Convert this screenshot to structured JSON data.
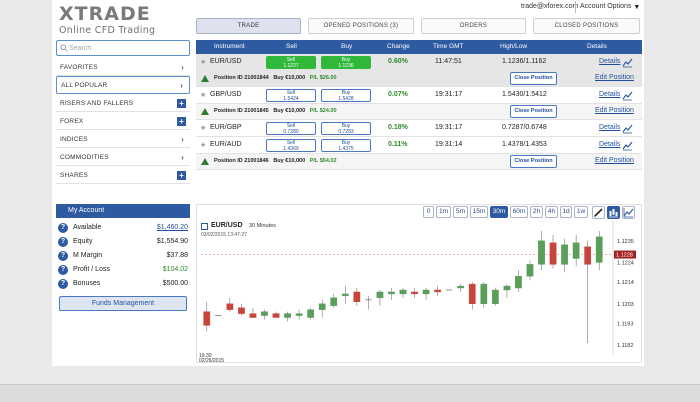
{
  "brand": {
    "logo": "XTRADE",
    "tagline": "Online CFD Trading"
  },
  "account_bar": {
    "email": "trade@xforex.com",
    "options_label": "Account Options"
  },
  "tabs": [
    {
      "label": "TRADE",
      "active": true
    },
    {
      "label": "OPENED POSITIONS (3)",
      "active": false
    },
    {
      "label": "ORDERS",
      "active": false
    },
    {
      "label": "CLOSED POSITIONS",
      "active": false
    }
  ],
  "search": {
    "placeholder": "Search"
  },
  "categories": [
    {
      "label": "FAVORITES",
      "icon": "chevron-right-icon"
    },
    {
      "label": "ALL POPULAR",
      "icon": "chevron-right-icon",
      "active": true
    },
    {
      "label": "RISERS AND FALLERS",
      "icon": "plus-icon"
    },
    {
      "label": "FOREX",
      "icon": "plus-icon"
    },
    {
      "label": "INDICES",
      "icon": "chevron-right-icon"
    },
    {
      "label": "COMMODITIES",
      "icon": "chevron-right-icon"
    },
    {
      "label": "SHARES",
      "icon": "plus-icon"
    }
  ],
  "my_account": {
    "title": "My Account",
    "rows": [
      {
        "label": "Available",
        "value": "$1,460.20"
      },
      {
        "label": "Equity",
        "value": "$1,554.90"
      },
      {
        "label": "M Margin",
        "value": "$37.88"
      },
      {
        "label": "Profit / Loss",
        "value": "$104.02"
      },
      {
        "label": "Bonuses",
        "value": "$500.00"
      }
    ],
    "funds_button": "Funds Management"
  },
  "table": {
    "headers": {
      "instrument": "Instrument",
      "sell": "Sell",
      "buy": "Buy",
      "change": "Change",
      "time": "Time GMT",
      "highlow": "High/Low",
      "details": "Details"
    },
    "rows": [
      {
        "instrument": "EUR/USD",
        "sell_label": "Sell",
        "sell": "1.1227",
        "buy_label": "Buy",
        "buy": "1.1236",
        "change": "0.60%",
        "time": "11:47:51",
        "highlow": "1.1236/1.1162",
        "details": "Details"
      },
      {
        "instrument": "GBP/USD",
        "sell_label": "Sell",
        "sell": "1.5424",
        "buy_label": "Buy",
        "buy": "1.5428",
        "change": "0.07%",
        "time": "19:31:17",
        "highlow": "1.5430/1.5412",
        "details": "Details"
      },
      {
        "instrument": "EUR/GBP",
        "sell_label": "Sell",
        "sell": "0.7280",
        "buy_label": "Buy",
        "buy": "0.7283",
        "change": "0.18%",
        "time": "19:31:17",
        "highlow": "0.7287/0.6748",
        "details": "Details"
      },
      {
        "instrument": "EUR/AUD",
        "sell_label": "Sell",
        "sell": "1.4369",
        "buy_label": "Buy",
        "buy": "1.4375",
        "change": "0.11%",
        "time": "19:31:14",
        "highlow": "1.4378/1.4353",
        "details": "Details"
      }
    ],
    "positions": [
      {
        "id": "Position ID 21001844",
        "buy": "Buy €10,000",
        "pl": "P/L $26.00",
        "close": "Close Position",
        "edit": "Edit Position"
      },
      {
        "id": "Position ID 21001845",
        "buy": "Buy €10,000",
        "pl": "P/L $24.00",
        "close": "Close Position",
        "edit": "Edit Position"
      },
      {
        "id": "Position ID 21001846",
        "buy": "Buy €10,000",
        "pl": "P/L $54.02",
        "close": "Close Position",
        "edit": "Edit Position"
      }
    ]
  },
  "chart": {
    "timeframes": [
      {
        "label": "0",
        "active": false
      },
      {
        "label": "1m",
        "active": false
      },
      {
        "label": "5m",
        "active": false
      },
      {
        "label": "15m",
        "active": false
      },
      {
        "label": "30m",
        "active": true
      },
      {
        "label": "60m",
        "active": false
      },
      {
        "label": "2h",
        "active": false
      },
      {
        "label": "4h",
        "active": false
      },
      {
        "label": "1d",
        "active": false
      },
      {
        "label": "1w",
        "active": false
      }
    ],
    "tools": [
      {
        "icon": "pencil-icon",
        "active": false
      },
      {
        "icon": "candlestick-chart-icon",
        "active": true
      },
      {
        "icon": "line-chart-icon",
        "active": false
      }
    ],
    "symbol": "EUR/USD",
    "timeframe_label": "30 Minutes",
    "datetime": "03/02/2015 13:47:27",
    "colors": {
      "up": "#5a9e5a",
      "down": "#c8453c",
      "marker": "#a32222"
    }
  },
  "chart_data": {
    "type": "candlestick",
    "title": "EUR/USD",
    "subtitle": "30 Minutes",
    "x_first_label": [
      "19:30",
      "02/26/2015"
    ],
    "y_ticks": [
      "1.1235",
      "1.1224",
      "1.1214",
      "1.1203",
      "1.1193",
      "1.1182"
    ],
    "ylim": [
      1.1179,
      1.1242
    ],
    "current_price": "1.1228",
    "candles": [
      {
        "o": 1.1199,
        "h": 1.1204,
        "l": 1.1189,
        "c": 1.1192
      },
      {
        "o": 1.1197,
        "h": 1.1197,
        "l": 1.1197,
        "c": 1.1197
      },
      {
        "o": 1.1203,
        "h": 1.1206,
        "l": 1.1199,
        "c": 1.12
      },
      {
        "o": 1.1201,
        "h": 1.1203,
        "l": 1.1197,
        "c": 1.1198
      },
      {
        "o": 1.1198,
        "h": 1.1201,
        "l": 1.1196,
        "c": 1.1196
      },
      {
        "o": 1.1197,
        "h": 1.12,
        "l": 1.1195,
        "c": 1.1199
      },
      {
        "o": 1.1198,
        "h": 1.1199,
        "l": 1.1196,
        "c": 1.1196
      },
      {
        "o": 1.1196,
        "h": 1.1199,
        "l": 1.1194,
        "c": 1.1198
      },
      {
        "o": 1.1197,
        "h": 1.12,
        "l": 1.1195,
        "c": 1.1198
      },
      {
        "o": 1.1196,
        "h": 1.1201,
        "l": 1.1195,
        "c": 1.12
      },
      {
        "o": 1.12,
        "h": 1.1205,
        "l": 1.1196,
        "c": 1.1203
      },
      {
        "o": 1.1202,
        "h": 1.1208,
        "l": 1.1201,
        "c": 1.1206
      },
      {
        "o": 1.1207,
        "h": 1.1212,
        "l": 1.1203,
        "c": 1.1208
      },
      {
        "o": 1.1209,
        "h": 1.1211,
        "l": 1.1202,
        "c": 1.1204
      },
      {
        "o": 1.1205,
        "h": 1.1207,
        "l": 1.12,
        "c": 1.1205
      },
      {
        "o": 1.1206,
        "h": 1.121,
        "l": 1.1202,
        "c": 1.1209
      },
      {
        "o": 1.1208,
        "h": 1.1211,
        "l": 1.1205,
        "c": 1.1209
      },
      {
        "o": 1.1208,
        "h": 1.1211,
        "l": 1.1206,
        "c": 1.121
      },
      {
        "o": 1.1209,
        "h": 1.1211,
        "l": 1.1206,
        "c": 1.1208
      },
      {
        "o": 1.1208,
        "h": 1.1211,
        "l": 1.1205,
        "c": 1.121
      },
      {
        "o": 1.121,
        "h": 1.1212,
        "l": 1.1207,
        "c": 1.1209
      },
      {
        "o": 1.121,
        "h": 1.121,
        "l": 1.121,
        "c": 1.121
      },
      {
        "o": 1.1211,
        "h": 1.1213,
        "l": 1.1209,
        "c": 1.1212
      },
      {
        "o": 1.1213,
        "h": 1.1214,
        "l": 1.12,
        "c": 1.1203
      },
      {
        "o": 1.1203,
        "h": 1.1214,
        "l": 1.1201,
        "c": 1.1213
      },
      {
        "o": 1.1203,
        "h": 1.1211,
        "l": 1.1202,
        "c": 1.121
      },
      {
        "o": 1.121,
        "h": 1.1213,
        "l": 1.1206,
        "c": 1.1212
      },
      {
        "o": 1.1211,
        "h": 1.122,
        "l": 1.1209,
        "c": 1.1217
      },
      {
        "o": 1.1217,
        "h": 1.1225,
        "l": 1.1215,
        "c": 1.1223
      },
      {
        "o": 1.1223,
        "h": 1.124,
        "l": 1.122,
        "c": 1.1235
      },
      {
        "o": 1.1234,
        "h": 1.1238,
        "l": 1.1221,
        "c": 1.1223
      },
      {
        "o": 1.1223,
        "h": 1.1236,
        "l": 1.1219,
        "c": 1.1233
      },
      {
        "o": 1.1226,
        "h": 1.1238,
        "l": 1.1222,
        "c": 1.1234
      },
      {
        "o": 1.1232,
        "h": 1.1235,
        "l": 1.1183,
        "c": 1.1223
      },
      {
        "o": 1.1224,
        "h": 1.124,
        "l": 1.122,
        "c": 1.1237
      }
    ]
  }
}
